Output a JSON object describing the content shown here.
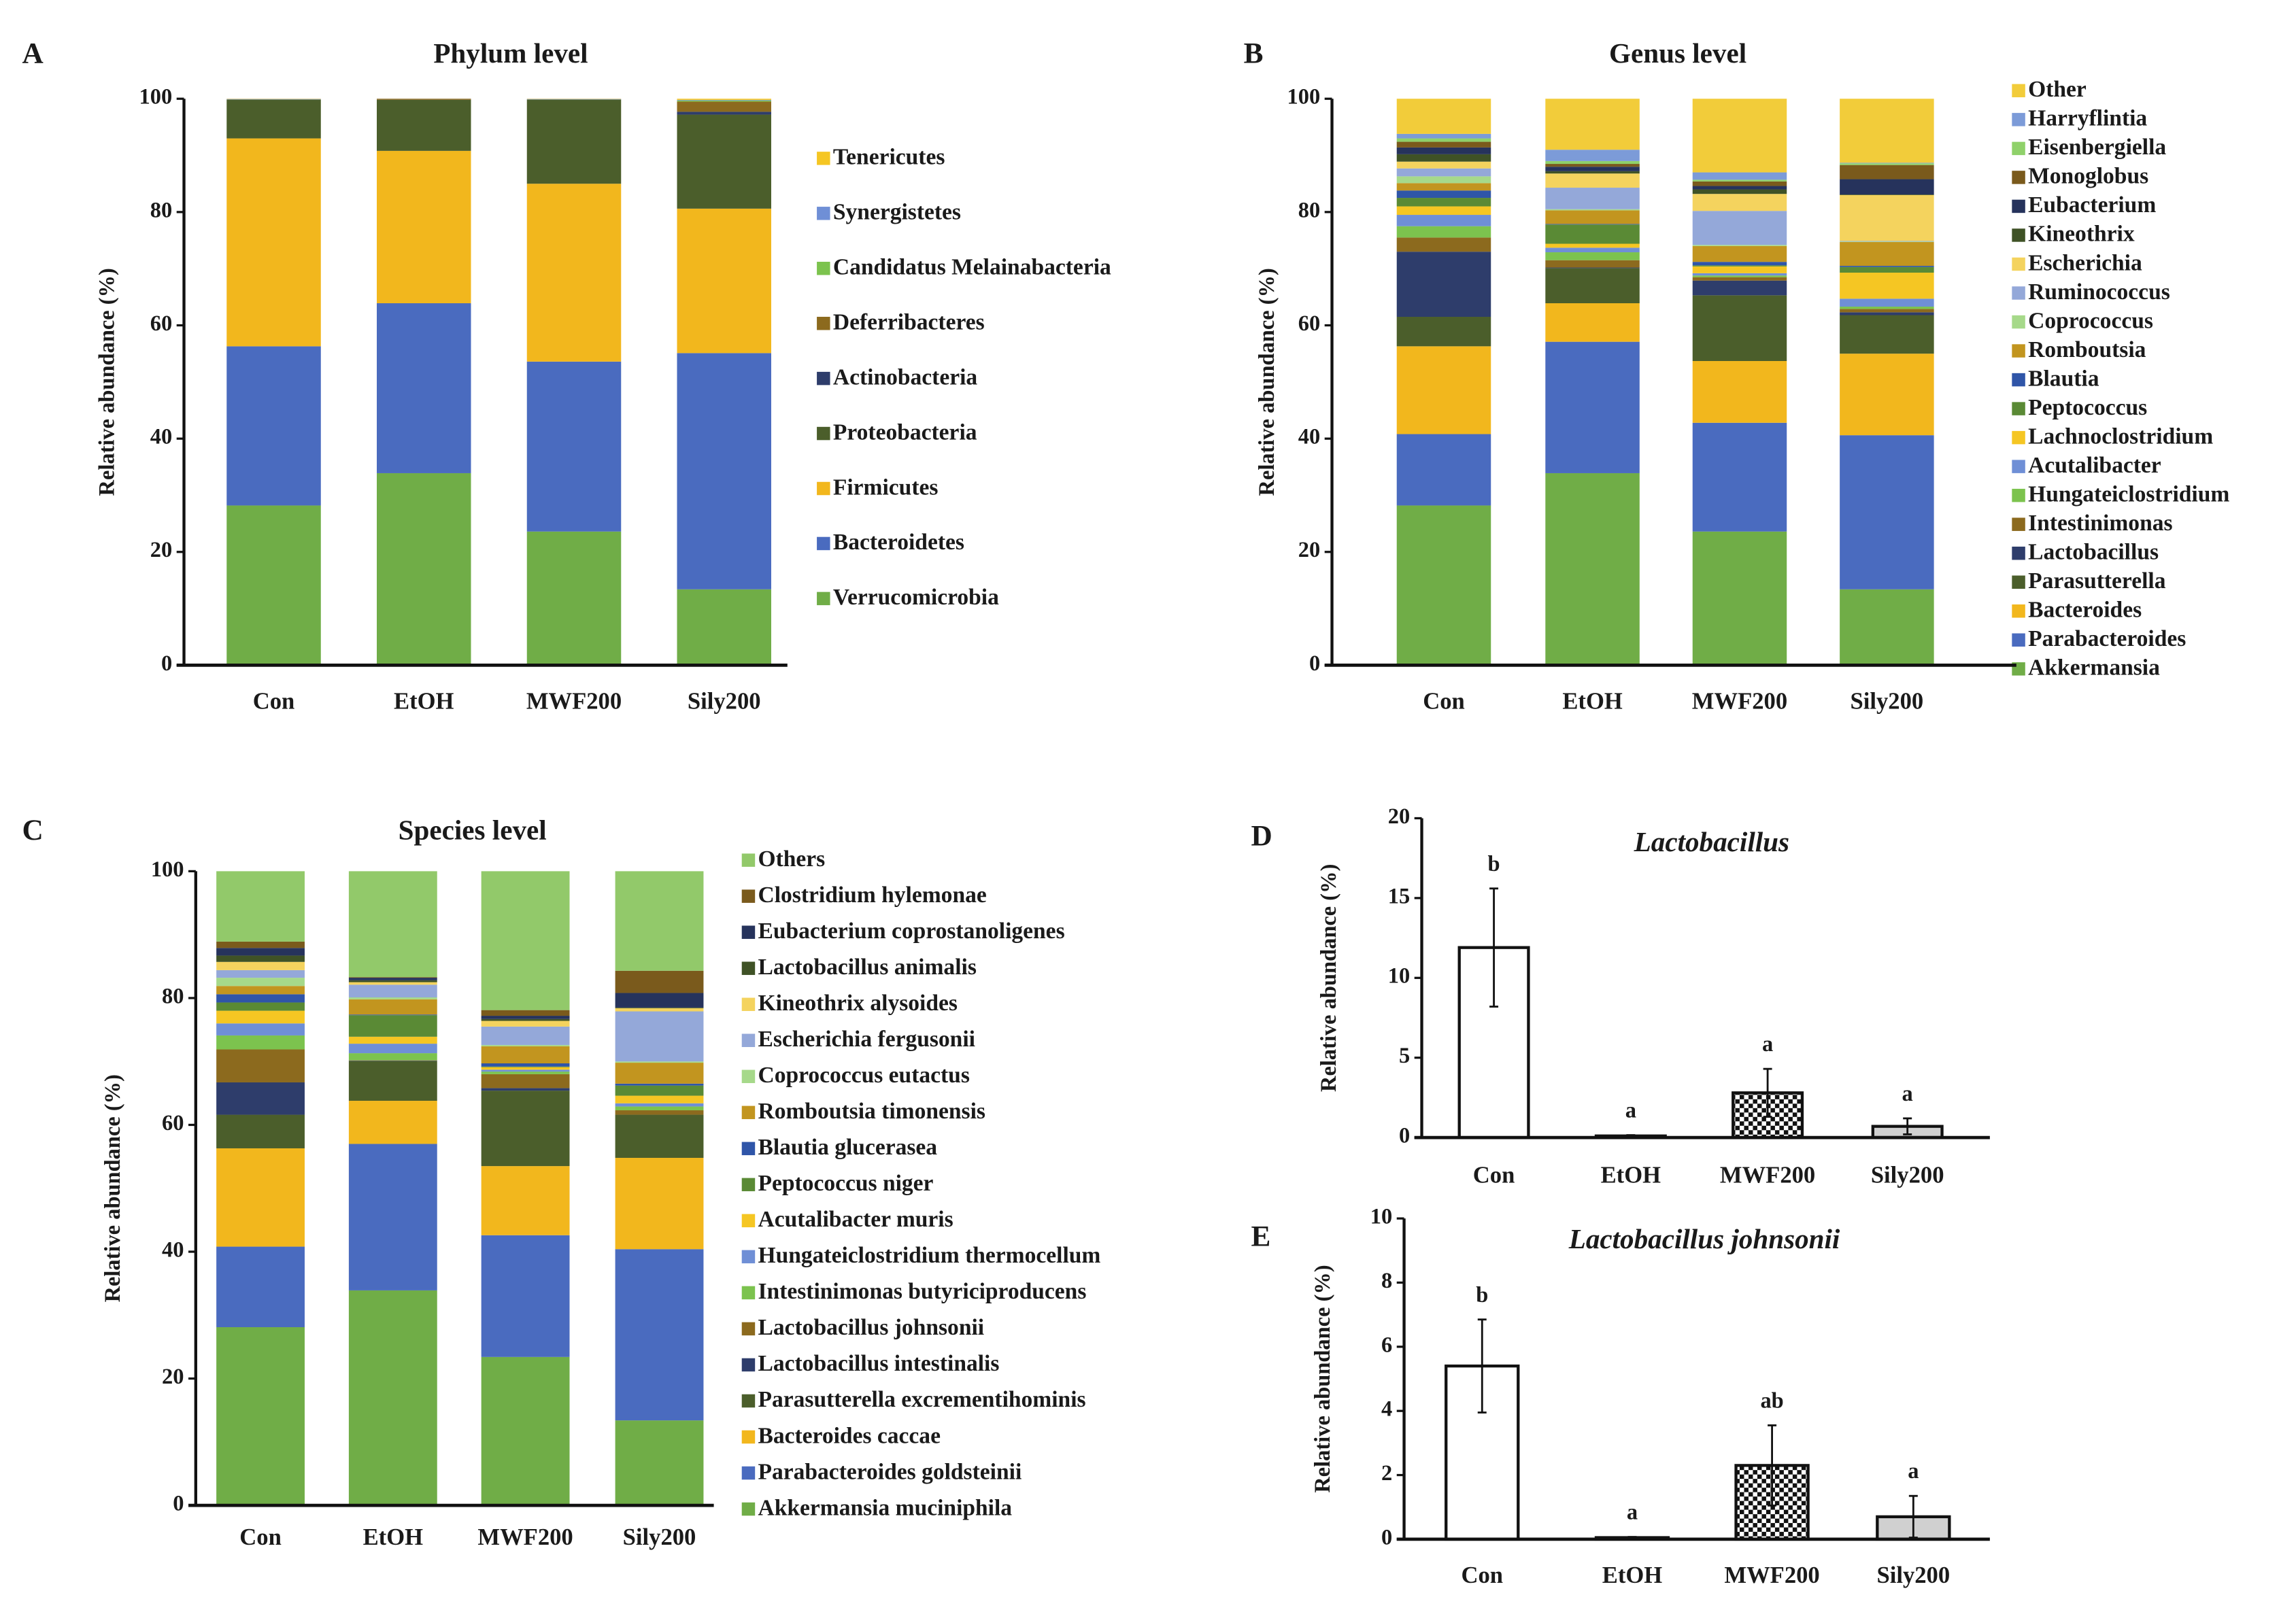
{
  "chart_data": [
    {
      "panel": "A",
      "type": "bar",
      "stacked": true,
      "title": "Phylum level",
      "ylabel": "Relative abundance (%)",
      "xlabel": "",
      "ylim": [
        0,
        100
      ],
      "yticks": [
        "0",
        "20",
        "40",
        "60",
        "80",
        "100"
      ],
      "categories": [
        "Con",
        "EtOH",
        "MWF200",
        "Sily200"
      ],
      "legend_position": "right",
      "series": [
        {
          "name": "Verrucomicrobia",
          "color": "#70ad47",
          "values": [
            28.2,
            33.9,
            23.6,
            13.4
          ]
        },
        {
          "name": "Bacteroidetes",
          "color": "#4a6bbf",
          "values": [
            28.1,
            30.0,
            30.0,
            41.7
          ]
        },
        {
          "name": "Firmicutes",
          "color": "#f2b71d",
          "values": [
            36.7,
            26.9,
            31.4,
            25.5
          ]
        },
        {
          "name": "Proteobacteria",
          "color": "#4b5e2b",
          "values": [
            6.8,
            9.0,
            14.8,
            16.6
          ]
        },
        {
          "name": "Actinobacteria",
          "color": "#2e3d6b",
          "values": [
            0.05,
            0.02,
            0.05,
            0.5
          ]
        },
        {
          "name": "Deferribacteres",
          "color": "#8c6a1e",
          "values": [
            0.02,
            0.2,
            0.02,
            1.8
          ]
        },
        {
          "name": "Candidatus Melainabacteria",
          "color": "#7cc34e",
          "values": [
            0.03,
            0.02,
            0.03,
            0.2
          ]
        },
        {
          "name": "Synergistetes",
          "color": "#6f8fd6",
          "values": [
            0.05,
            0.01,
            0.05,
            0.1
          ]
        },
        {
          "name": "Tenericutes",
          "color": "#f5c623",
          "values": [
            0.05,
            0.05,
            0.05,
            0.2
          ]
        }
      ]
    },
    {
      "panel": "B",
      "type": "bar",
      "stacked": true,
      "title": "Genus level",
      "ylabel": "Relative abundance (%)",
      "xlabel": "",
      "ylim": [
        0,
        100
      ],
      "yticks": [
        "0",
        "20",
        "40",
        "60",
        "80",
        "100"
      ],
      "categories": [
        "Con",
        "EtOH",
        "MWF200",
        "Sily200"
      ],
      "legend_position": "right",
      "series": [
        {
          "name": "Akkermansia",
          "color": "#70ad47",
          "values": [
            28.2,
            33.9,
            23.6,
            13.4
          ]
        },
        {
          "name": "Parabacteroides",
          "color": "#4a6bbf",
          "values": [
            12.6,
            23.2,
            19.2,
            27.2
          ]
        },
        {
          "name": "Bacteroides",
          "color": "#f2b71d",
          "values": [
            15.5,
            6.8,
            10.9,
            14.4
          ]
        },
        {
          "name": "Parasutterella",
          "color": "#4b5e2b",
          "values": [
            5.2,
            6.2,
            11.6,
            6.8
          ]
        },
        {
          "name": "Lactobacillus",
          "color": "#2e3d6b",
          "values": [
            11.5,
            0.1,
            2.6,
            0.5
          ]
        },
        {
          "name": "Intestinimonas",
          "color": "#8c6a1e",
          "values": [
            2.5,
            1.3,
            0.6,
            0.6
          ]
        },
        {
          "name": "Hungateiclostridium",
          "color": "#7cc34e",
          "values": [
            2.0,
            1.4,
            0.3,
            0.4
          ]
        },
        {
          "name": "Acutalibacter",
          "color": "#6f8fd6",
          "values": [
            2.0,
            0.8,
            0.4,
            1.4
          ]
        },
        {
          "name": "Lachnoclostridium",
          "color": "#f5c623",
          "values": [
            1.5,
            0.7,
            1.2,
            4.6
          ]
        },
        {
          "name": "Peptococcus",
          "color": "#5a8a35",
          "values": [
            1.5,
            3.4,
            0.2,
            1.0
          ]
        },
        {
          "name": "Blautia",
          "color": "#2f55a8",
          "values": [
            1.3,
            0.1,
            0.6,
            0.2
          ]
        },
        {
          "name": "Romboutsia",
          "color": "#c2951f",
          "values": [
            1.3,
            2.4,
            2.8,
            4.2
          ]
        },
        {
          "name": "Coprococcus",
          "color": "#a6d98a",
          "values": [
            1.2,
            0.2,
            0.2,
            0.1
          ]
        },
        {
          "name": "Ruminococcus",
          "color": "#94a8d9",
          "values": [
            1.4,
            3.8,
            6.0,
            0.1
          ]
        },
        {
          "name": "Escherichia",
          "color": "#f4d35e",
          "values": [
            1.2,
            2.5,
            3.0,
            8.1
          ]
        },
        {
          "name": "Kineothrix",
          "color": "#3f5226",
          "values": [
            1.3,
            0.4,
            0.8,
            0.1
          ]
        },
        {
          "name": "Eubacterium",
          "color": "#26335c",
          "values": [
            1.2,
            0.8,
            0.6,
            2.7
          ]
        },
        {
          "name": "Monoglobus",
          "color": "#7a5a1c",
          "values": [
            1.0,
            0.5,
            0.8,
            2.5
          ]
        },
        {
          "name": "Eisenbergiella",
          "color": "#8fd16a",
          "values": [
            0.6,
            0.5,
            0.3,
            0.3
          ]
        },
        {
          "name": "Harryflintia",
          "color": "#7c9bd8",
          "values": [
            0.8,
            2.0,
            1.3,
            0.1
          ]
        },
        {
          "name": "Other",
          "color": "#f2cc3a",
          "values": [
            6.2,
            9.0,
            13.0,
            11.3
          ]
        }
      ]
    },
    {
      "panel": "C",
      "type": "bar",
      "stacked": true,
      "title": "Species level",
      "ylabel": "Relative abundance (%)",
      "xlabel": "",
      "ylim": [
        0,
        100
      ],
      "yticks": [
        "0",
        "20",
        "40",
        "60",
        "80",
        "100"
      ],
      "categories": [
        "Con",
        "EtOH",
        "MWF200",
        "Sily200"
      ],
      "legend_position": "right",
      "series": [
        {
          "name": "Akkermansia muciniphila",
          "color": "#70ad47",
          "values": [
            28.1,
            33.9,
            23.4,
            13.4
          ]
        },
        {
          "name": "Parabacteroides goldsteinii",
          "color": "#4a6bbf",
          "values": [
            12.7,
            23.1,
            19.2,
            27.0
          ]
        },
        {
          "name": "Bacteroides caccae",
          "color": "#f2b71d",
          "values": [
            15.5,
            6.8,
            10.9,
            14.4
          ]
        },
        {
          "name": "Parasutterella excrementihominis",
          "color": "#4b5e2b",
          "values": [
            5.3,
            6.3,
            11.9,
            6.8
          ]
        },
        {
          "name": "Lactobacillus intestinalis",
          "color": "#2e3d6b",
          "values": [
            5.1,
            0.05,
            0.4,
            0.0
          ]
        },
        {
          "name": "Lactobacillus johnsonii",
          "color": "#8c6a1e",
          "values": [
            5.2,
            0.05,
            2.2,
            0.7
          ]
        },
        {
          "name": "Intestinimonas butyriciproducens",
          "color": "#7cc34e",
          "values": [
            2.2,
            1.1,
            0.4,
            0.6
          ]
        },
        {
          "name": "Hungateiclostridium thermocellum",
          "color": "#6f8fd6",
          "values": [
            1.9,
            1.5,
            0.3,
            0.5
          ]
        },
        {
          "name": "Acutalibacter muris",
          "color": "#f5c623",
          "values": [
            2.0,
            1.1,
            0.4,
            1.2
          ]
        },
        {
          "name": "Peptococcus niger",
          "color": "#5a8a35",
          "values": [
            1.3,
            3.4,
            0.1,
            1.6
          ]
        },
        {
          "name": "Blautia glucerasea",
          "color": "#2f55a8",
          "values": [
            1.3,
            0.1,
            0.5,
            0.3
          ]
        },
        {
          "name": "Romboutsia timonensis",
          "color": "#c2951f",
          "values": [
            1.3,
            2.4,
            2.7,
            3.3
          ]
        },
        {
          "name": "Coprococcus eutactus",
          "color": "#a6d98a",
          "values": [
            1.3,
            0.3,
            0.2,
            0.2
          ]
        },
        {
          "name": "Escherichia fergusonii",
          "color": "#94a8d9",
          "values": [
            1.2,
            2.0,
            2.9,
            7.9
          ]
        },
        {
          "name": "Kineothrix alysoides",
          "color": "#f4d35e",
          "values": [
            1.3,
            0.4,
            0.9,
            0.5
          ]
        },
        {
          "name": "Lactobacillus animalis",
          "color": "#3f5226",
          "values": [
            1.0,
            0.3,
            0.3,
            0.1
          ]
        },
        {
          "name": "Eubacterium coprostanoligenes",
          "color": "#26335c",
          "values": [
            1.2,
            0.4,
            0.5,
            2.3
          ]
        },
        {
          "name": "Clostridium hylemonae",
          "color": "#7a5a1c",
          "values": [
            1.0,
            0.1,
            0.9,
            3.5
          ]
        },
        {
          "name": "Others",
          "color": "#92c96a",
          "values": [
            11.1,
            16.7,
            21.9,
            15.7
          ]
        }
      ]
    },
    {
      "panel": "D",
      "type": "bar",
      "title": "Lactobacillus",
      "ylabel": "Relative abundance (%)",
      "xlabel": "",
      "ylim": [
        0,
        20
      ],
      "yticks": [
        "0",
        "5",
        "10",
        "15",
        "20"
      ],
      "categories": [
        "Con",
        "EtOH",
        "MWF200",
        "Sily200"
      ],
      "values": [
        11.9,
        0.1,
        2.8,
        0.7
      ],
      "errors": [
        3.7,
        0.05,
        1.5,
        0.5
      ],
      "letters": [
        "b",
        "a",
        "a",
        "a"
      ],
      "fills": [
        "white",
        "white",
        "checkerboard",
        "lightgray"
      ]
    },
    {
      "panel": "E",
      "type": "bar",
      "title": "Lactobacillus johnsonii",
      "ylabel": "Relative abundance (%)",
      "xlabel": "",
      "ylim": [
        0,
        10
      ],
      "yticks": [
        "0",
        "2",
        "4",
        "6",
        "8",
        "10"
      ],
      "categories": [
        "Con",
        "EtOH",
        "MWF200",
        "Sily200"
      ],
      "values": [
        5.4,
        0.05,
        2.3,
        0.7
      ],
      "errors": [
        1.45,
        0.02,
        1.25,
        0.65
      ],
      "letters": [
        "b",
        "a",
        "ab",
        "a"
      ],
      "fills": [
        "white",
        "white",
        "checkerboard",
        "lightgray"
      ]
    }
  ]
}
